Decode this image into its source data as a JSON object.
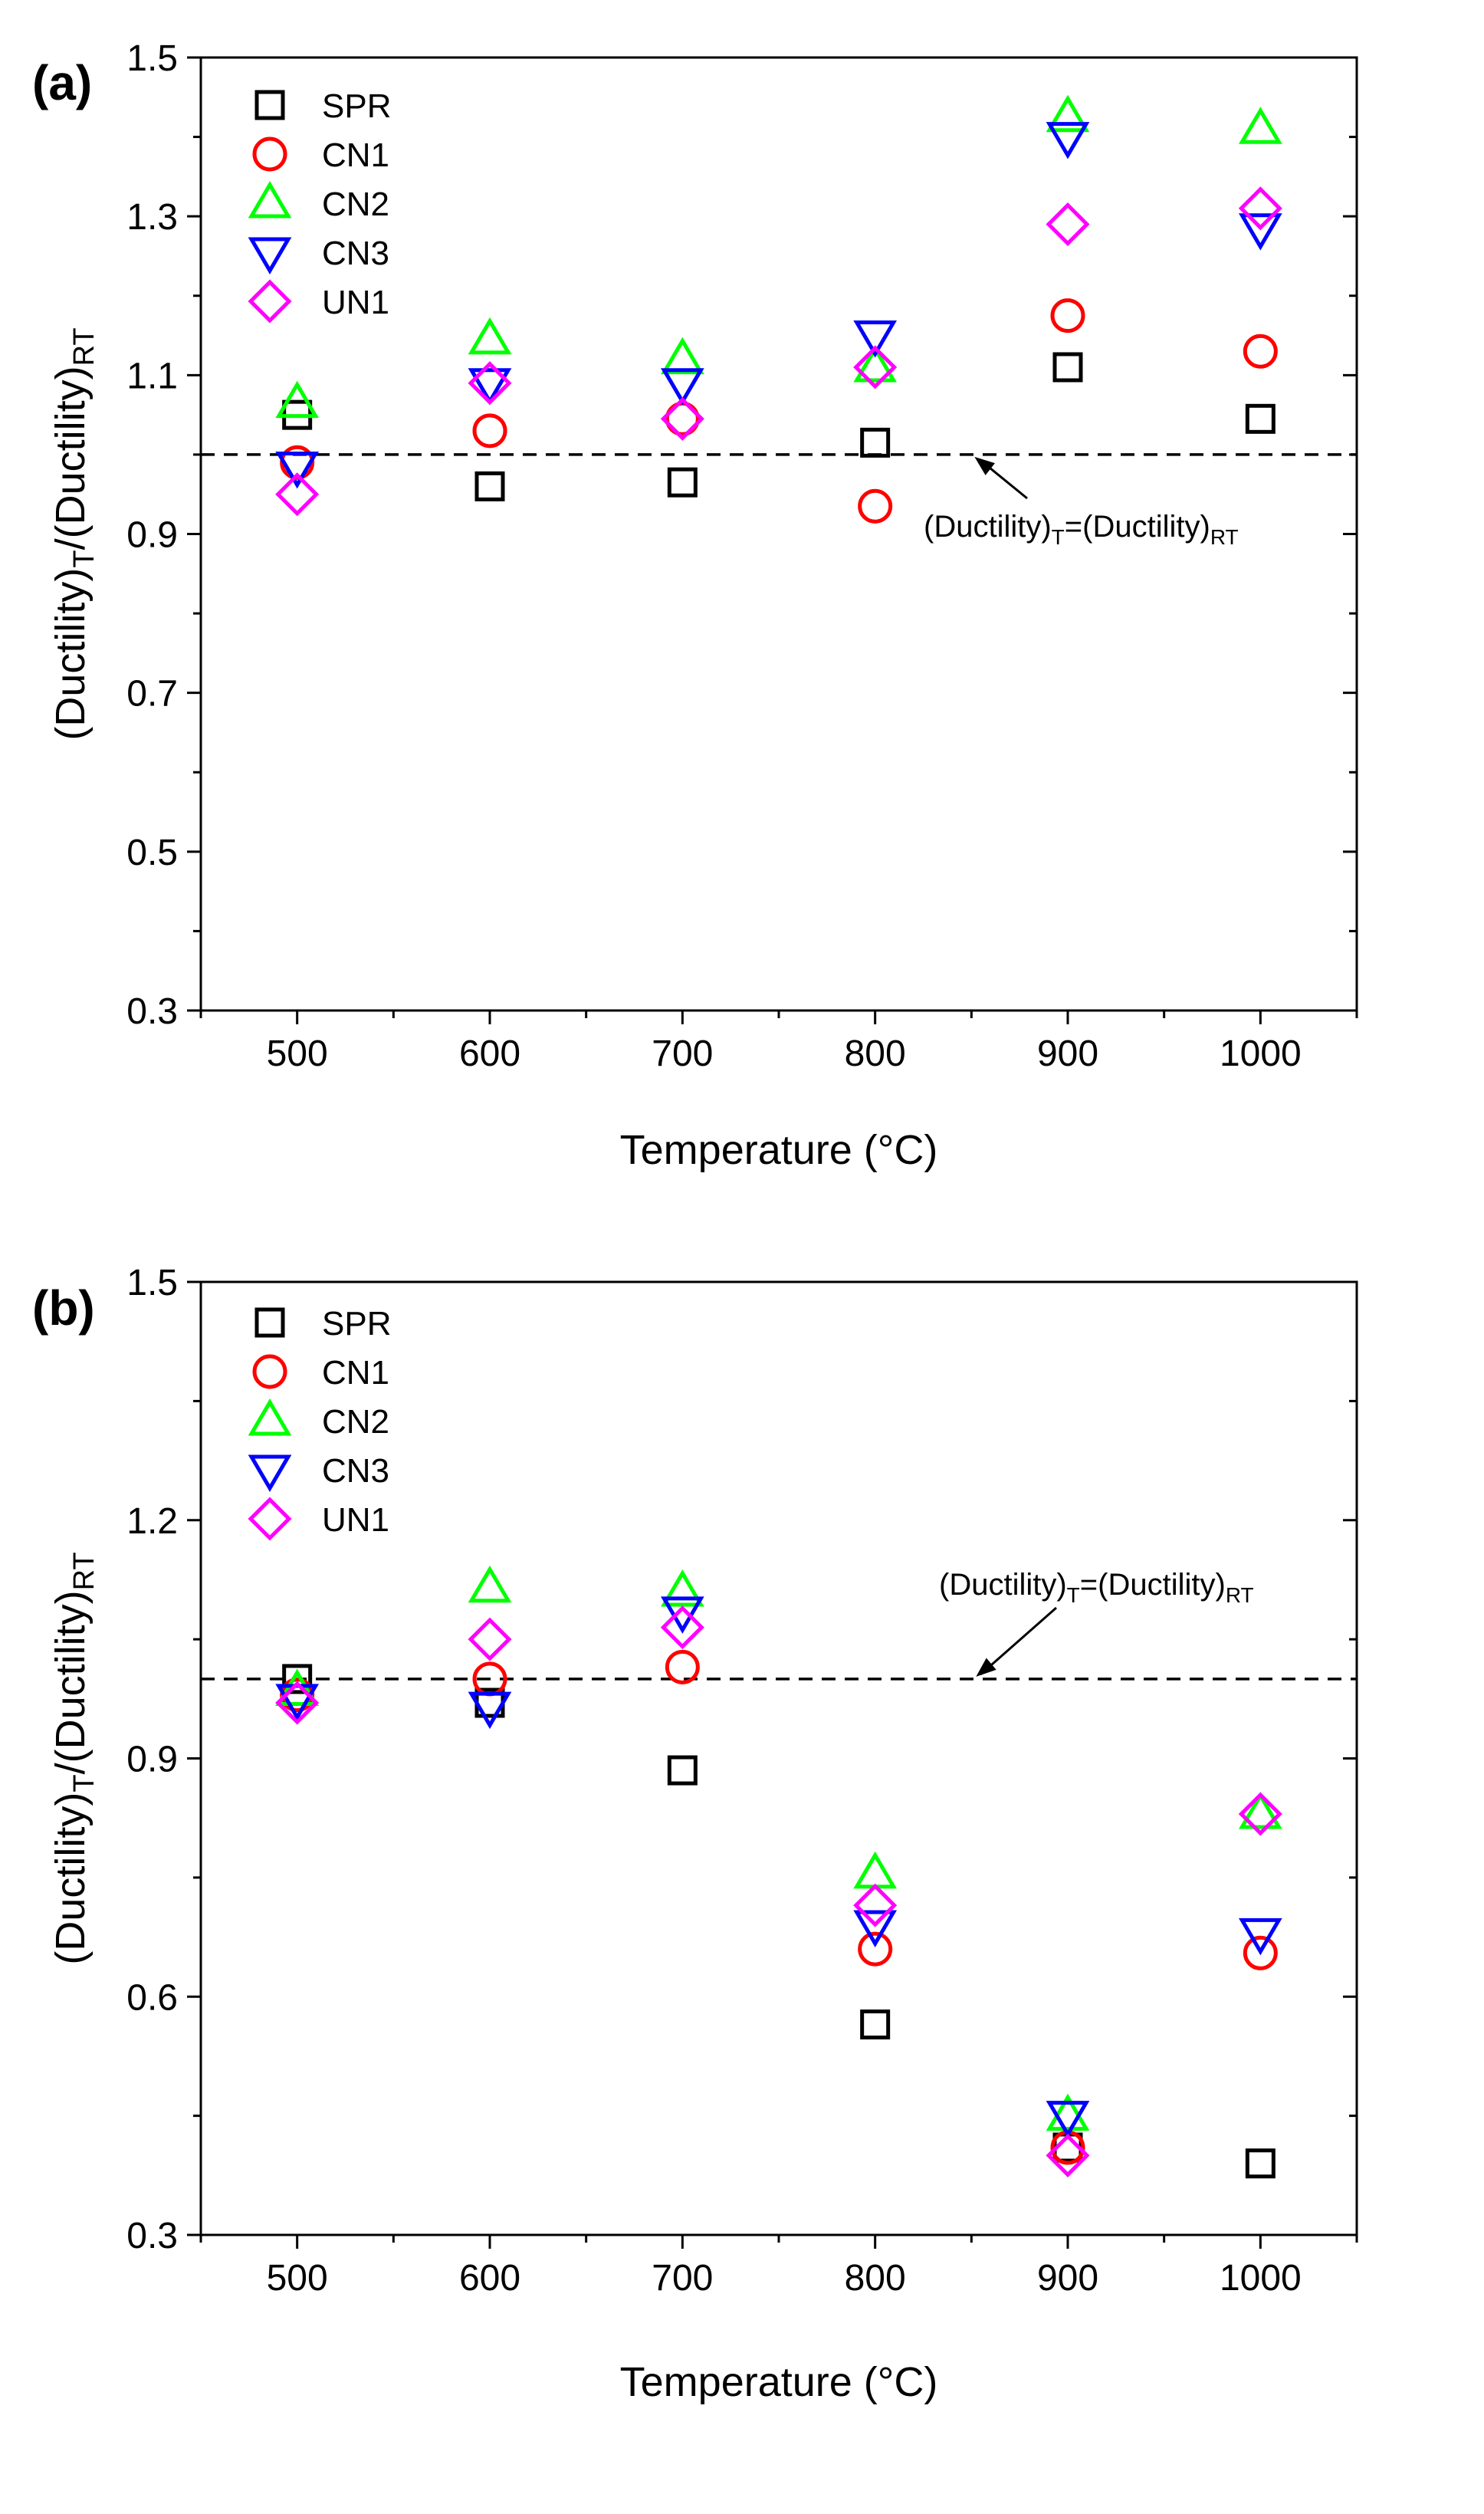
{
  "legend_labels": [
    "SPR",
    "CN1",
    "CN2",
    "CN3",
    "UN1"
  ],
  "series_styles": {
    "SPR": {
      "marker": "square",
      "color": "#000000"
    },
    "CN1": {
      "marker": "circle",
      "color": "#ff0000"
    },
    "CN2": {
      "marker": "triangle-up",
      "color": "#00ff00"
    },
    "CN3": {
      "marker": "triangle-down",
      "color": "#0000ff"
    },
    "UN1": {
      "marker": "diamond",
      "color": "#ff00ff"
    }
  },
  "chart_data": [
    {
      "type": "scatter",
      "panel_label": "(a)",
      "xlabel": "Temperature (°C)",
      "ylabel": "(Ductility)T/(Ductility)RT",
      "ylabel_parts": {
        "base": "(Ductility)",
        "sub1": "T",
        "sep": "/(Ductility)",
        "sub2": "RT"
      },
      "x": [
        500,
        600,
        700,
        800,
        900,
        1000
      ],
      "x_ticks": [
        "500",
        "600",
        "700",
        "800",
        "900",
        "1000"
      ],
      "xlim": [
        450,
        1050
      ],
      "ylim": [
        0.3,
        1.5
      ],
      "y_ticks": [
        "0.3",
        "0.5",
        "0.7",
        "0.9",
        "1.1",
        "1.3",
        "1.5"
      ],
      "reference_line": 1.0,
      "annotation": {
        "base": "(Ductility)",
        "sub1": "T",
        "mid": "=(Ductility)",
        "sub2": "RT"
      },
      "annotation_arrow_to": {
        "x": 850,
        "y": 1.0
      },
      "series": [
        {
          "name": "SPR",
          "values": [
            1.05,
            0.96,
            0.965,
            1.015,
            1.11,
            1.045
          ]
        },
        {
          "name": "CN1",
          "values": [
            0.99,
            1.03,
            1.045,
            0.935,
            1.175,
            1.13
          ]
        },
        {
          "name": "CN2",
          "values": [
            1.065,
            1.145,
            1.12,
            1.11,
            1.425,
            1.41
          ]
        },
        {
          "name": "CN3",
          "values": [
            0.985,
            1.09,
            1.09,
            1.15,
            1.4,
            1.285
          ]
        },
        {
          "name": "UN1",
          "values": [
            0.95,
            1.09,
            1.045,
            1.11,
            1.29,
            1.31
          ]
        }
      ]
    },
    {
      "type": "scatter",
      "panel_label": "(b)",
      "xlabel": "Temperature (°C)",
      "ylabel": "(Ductility)T/(Ductility)RT",
      "ylabel_parts": {
        "base": "(Ductility)",
        "sub1": "T",
        "sep": "/(Ductility)",
        "sub2": "RT"
      },
      "x": [
        500,
        600,
        700,
        800,
        900,
        1000
      ],
      "x_ticks": [
        "500",
        "600",
        "700",
        "800",
        "900",
        "1000"
      ],
      "xlim": [
        450,
        1050
      ],
      "ylim": [
        0.3,
        1.5
      ],
      "y_ticks": [
        "0.3",
        "0.6",
        "0.9",
        "1.2",
        "1.5"
      ],
      "reference_line": 1.0,
      "annotation": {
        "base": "(Ductility)",
        "sub1": "T",
        "mid": "=(Ductility)",
        "sub2": "RT"
      },
      "annotation_arrow_to": {
        "x": 850,
        "y": 1.0
      },
      "series": [
        {
          "name": "SPR",
          "values": [
            1.0,
            0.97,
            0.885,
            0.565,
            0.41,
            0.39
          ]
        },
        {
          "name": "CN1",
          "values": [
            0.98,
            1.0,
            1.015,
            0.66,
            0.41,
            0.655
          ]
        },
        {
          "name": "CN2",
          "values": [
            0.985,
            1.115,
            1.11,
            0.755,
            0.45,
            0.83
          ]
        },
        {
          "name": "CN3",
          "values": [
            0.975,
            0.965,
            1.085,
            0.69,
            0.45,
            0.68
          ]
        },
        {
          "name": "UN1",
          "values": [
            0.97,
            1.05,
            1.065,
            0.715,
            0.4,
            0.83
          ]
        }
      ]
    }
  ]
}
